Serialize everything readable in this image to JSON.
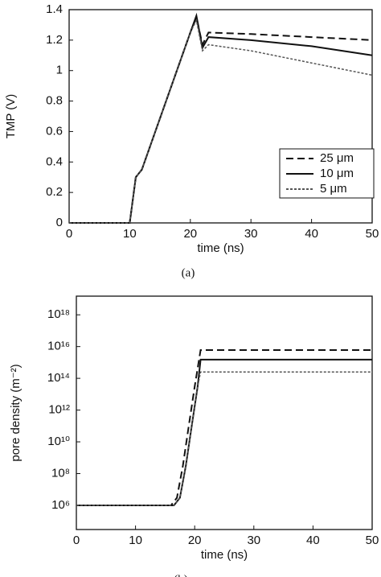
{
  "chart_data": [
    {
      "type": "line",
      "caption": "(a)",
      "xlabel": "time (ns)",
      "ylabel": "TMP (V)",
      "xlim": [
        0,
        50
      ],
      "xticks": [
        0,
        10,
        20,
        30,
        40,
        50
      ],
      "ylim": [
        0,
        1.4
      ],
      "yticks": [
        0,
        0.2,
        0.4,
        0.6,
        0.8,
        1,
        1.2,
        1.4
      ],
      "legend": "lower right",
      "series": [
        {
          "name": "25 μm",
          "color": "#111111",
          "linestyle": "dashed",
          "x": [
            0,
            10,
            11,
            12,
            20,
            21,
            22,
            23,
            30,
            40,
            50
          ],
          "values": [
            0,
            0,
            0.3,
            0.35,
            1.25,
            1.35,
            1.17,
            1.25,
            1.24,
            1.22,
            1.2
          ]
        },
        {
          "name": "10 μm",
          "color": "#111111",
          "linestyle": "solid",
          "x": [
            0,
            10,
            11,
            12,
            20,
            21,
            22,
            23,
            30,
            40,
            50
          ],
          "values": [
            0,
            0,
            0.3,
            0.35,
            1.25,
            1.36,
            1.15,
            1.22,
            1.2,
            1.16,
            1.1
          ]
        },
        {
          "name": "5 μm",
          "color": "#555555",
          "linestyle": "dotted",
          "x": [
            0,
            10,
            11,
            12,
            20,
            21,
            22,
            23,
            30,
            40,
            50
          ],
          "values": [
            0,
            0,
            0.3,
            0.35,
            1.25,
            1.33,
            1.13,
            1.17,
            1.13,
            1.05,
            0.97
          ]
        }
      ]
    },
    {
      "type": "line",
      "caption": "(b)",
      "xlabel": "time (ns)",
      "ylabel": "pore density (m⁻²)",
      "xlim": [
        0,
        50
      ],
      "xticks": [
        0,
        10,
        20,
        30,
        40,
        50
      ],
      "ylog": true,
      "ylim": [
        30000,
        15000000000000000000
      ],
      "yticks": [
        {
          "value": 1000000,
          "label": "10⁶"
        },
        {
          "value": 100000000,
          "label": "10⁸"
        },
        {
          "value": 10000000000,
          "label": "10¹⁰"
        },
        {
          "value": 1000000000000,
          "label": "10¹²"
        },
        {
          "value": 100000000000000,
          "label": "10¹⁴"
        },
        {
          "value": 10000000000000000,
          "label": "10¹⁶"
        },
        {
          "value": 1000000000000000000,
          "label": "10¹⁸"
        }
      ],
      "series": [
        {
          "color": "#111111",
          "linestyle": "dashed",
          "x": [
            0,
            16,
            17,
            18,
            19,
            20,
            21,
            50
          ],
          "values": [
            1000000,
            1000000,
            3000000,
            300000000,
            100000000000,
            30000000000000,
            6000000000000000,
            6000000000000000
          ]
        },
        {
          "color": "#111111",
          "linestyle": "solid",
          "x": [
            0,
            16.5,
            17.5,
            18.5,
            19.5,
            20.5,
            21,
            50
          ],
          "values": [
            1000000,
            1000000,
            3000000,
            300000000,
            100000000000,
            30000000000000,
            1500000000000000,
            1500000000000000
          ]
        },
        {
          "color": "#555555",
          "linestyle": "dotted",
          "x": [
            0,
            16.5,
            17.5,
            18.5,
            19.5,
            20.5,
            21,
            50
          ],
          "values": [
            1000000,
            1000000,
            3000000,
            300000000,
            100000000000,
            30000000000000,
            250000000000000,
            250000000000000
          ]
        }
      ]
    }
  ]
}
